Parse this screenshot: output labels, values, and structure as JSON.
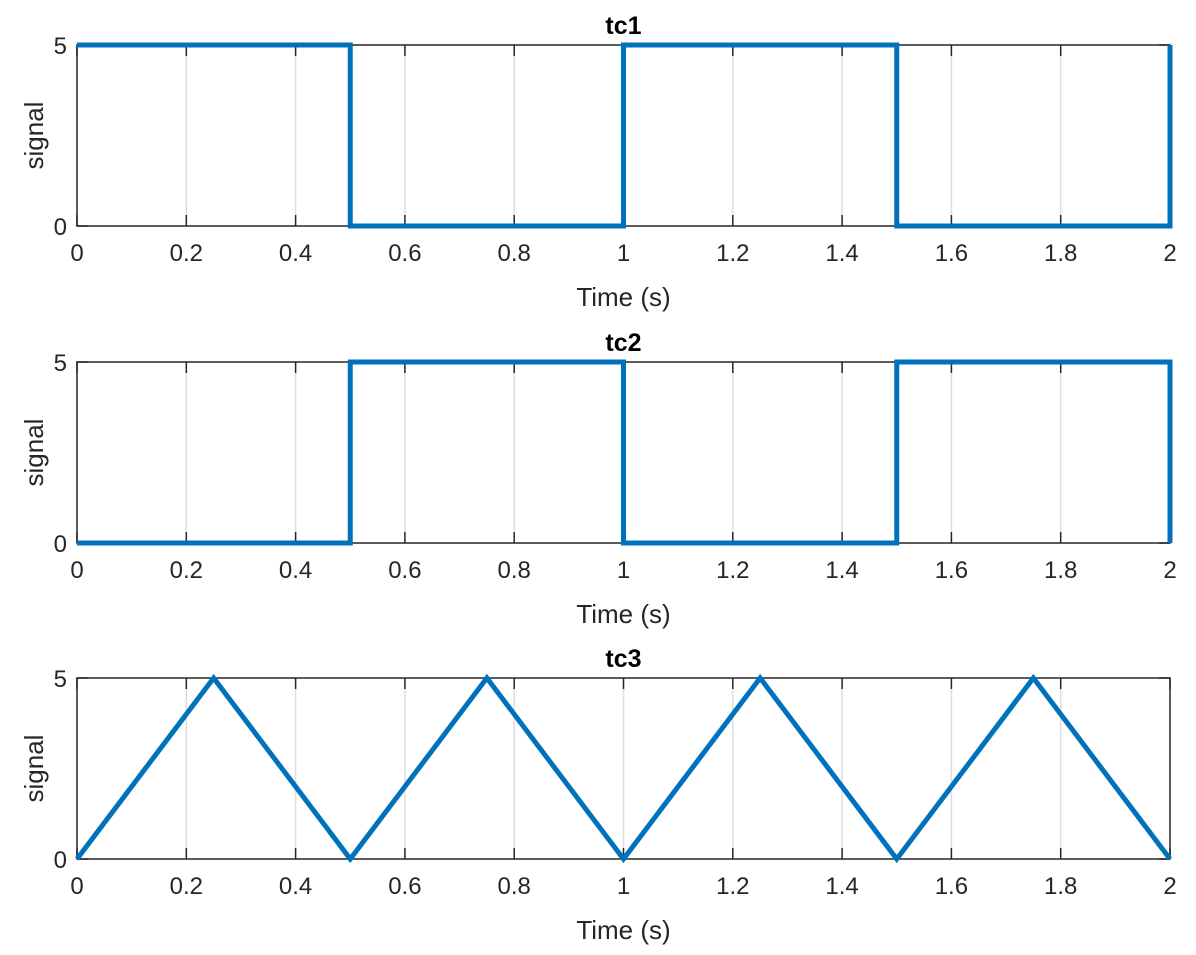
{
  "chart_data": [
    {
      "type": "line",
      "title": "tc1",
      "xlabel": "Time (s)",
      "ylabel": "signal",
      "xlim": [
        0,
        2
      ],
      "ylim": [
        0,
        5
      ],
      "xticks": [
        0,
        0.2,
        0.4,
        0.6,
        0.8,
        1,
        1.2,
        1.4,
        1.6,
        1.8,
        2
      ],
      "xtick_labels": [
        "0",
        "0.2",
        "0.4",
        "0.6",
        "0.8",
        "1",
        "1.2",
        "1.4",
        "1.6",
        "1.8",
        "2"
      ],
      "yticks": [
        0,
        5
      ],
      "ytick_labels": [
        "0",
        "5"
      ],
      "grid": "x",
      "series": [
        {
          "color": "#0072bd",
          "x": [
            0,
            0.5,
            0.5,
            1.0,
            1.0,
            1.5,
            1.5,
            2.0,
            2.0
          ],
          "y": [
            5,
            5,
            0,
            0,
            5,
            5,
            0,
            0,
            5
          ]
        }
      ]
    },
    {
      "type": "line",
      "title": "tc2",
      "xlabel": "Time (s)",
      "ylabel": "signal",
      "xlim": [
        0,
        2
      ],
      "ylim": [
        0,
        5
      ],
      "xticks": [
        0,
        0.2,
        0.4,
        0.6,
        0.8,
        1,
        1.2,
        1.4,
        1.6,
        1.8,
        2
      ],
      "xtick_labels": [
        "0",
        "0.2",
        "0.4",
        "0.6",
        "0.8",
        "1",
        "1.2",
        "1.4",
        "1.6",
        "1.8",
        "2"
      ],
      "yticks": [
        0,
        5
      ],
      "ytick_labels": [
        "0",
        "5"
      ],
      "grid": "x",
      "series": [
        {
          "color": "#0072bd",
          "x": [
            0,
            0.5,
            0.5,
            1.0,
            1.0,
            1.5,
            1.5,
            2.0,
            2.0
          ],
          "y": [
            0,
            0,
            5,
            5,
            0,
            0,
            5,
            5,
            0
          ]
        }
      ]
    },
    {
      "type": "line",
      "title": "tc3",
      "xlabel": "Time (s)",
      "ylabel": "signal",
      "xlim": [
        0,
        2
      ],
      "ylim": [
        0,
        5
      ],
      "xticks": [
        0,
        0.2,
        0.4,
        0.6,
        0.8,
        1,
        1.2,
        1.4,
        1.6,
        1.8,
        2
      ],
      "xtick_labels": [
        "0",
        "0.2",
        "0.4",
        "0.6",
        "0.8",
        "1",
        "1.2",
        "1.4",
        "1.6",
        "1.8",
        "2"
      ],
      "yticks": [
        0,
        5
      ],
      "ytick_labels": [
        "0",
        "5"
      ],
      "grid": "x",
      "series": [
        {
          "color": "#0072bd",
          "x": [
            0,
            0.25,
            0.5,
            0.75,
            1.0,
            1.25,
            1.5,
            1.75,
            2.0
          ],
          "y": [
            0,
            5,
            0,
            5,
            0,
            5,
            0,
            5,
            0
          ]
        }
      ]
    }
  ]
}
